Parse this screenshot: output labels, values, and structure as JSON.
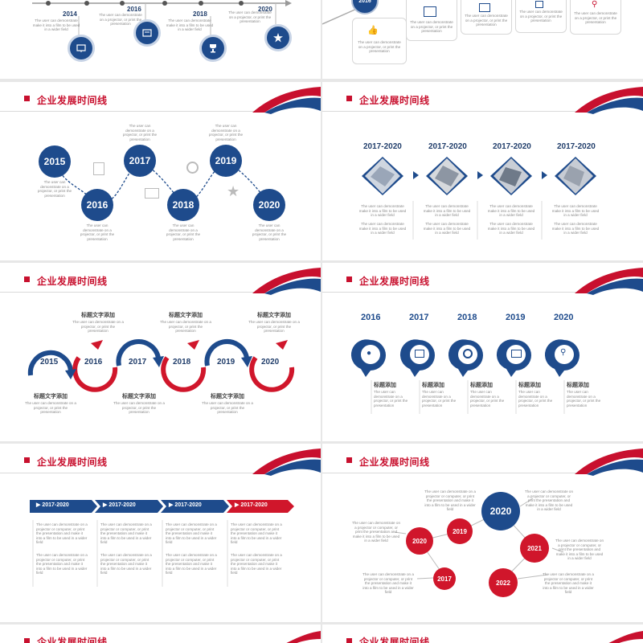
{
  "colors": {
    "blue": "#1e4b8c",
    "red": "#d0162b",
    "title_red": "#c8102e"
  },
  "slide_title": "企业发展时间线",
  "desc_short": "The user can demonstrate on a projector, or print the presentation",
  "desc_long": "The user can demonstrate on a projector or computer, or print the presentation and make it into a film to be used in a wider field",
  "desc_mid": "The user can demonstrate make it into a film to be used in a wider field",
  "top_left": {
    "years": [
      "2014",
      "2016",
      "2018",
      "2020"
    ]
  },
  "top_right": {
    "year_partial": "2016"
  },
  "slide3": {
    "years": [
      "2015",
      "2016",
      "2017",
      "2018",
      "2019",
      "2020"
    ]
  },
  "slide4": {
    "labels": [
      "2017-2020",
      "2017-2020",
      "2017-2020",
      "2017-2020"
    ]
  },
  "slide5": {
    "years": [
      "2015",
      "2016",
      "2017",
      "2018",
      "2019",
      "2020"
    ],
    "heading": "标题文字添加"
  },
  "slide6": {
    "years": [
      "2016",
      "2017",
      "2018",
      "2019",
      "2020"
    ],
    "heading": "标题添加"
  },
  "slide7": {
    "labels": [
      "2017-2020",
      "2017-2020",
      "2017-2020",
      "2017-2020"
    ]
  },
  "slide8": {
    "years": [
      "2020",
      "2019",
      "2020",
      "2021",
      "2017",
      "2022"
    ]
  }
}
